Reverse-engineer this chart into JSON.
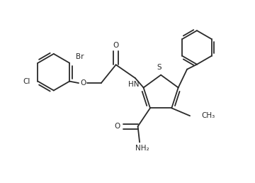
{
  "bg_color": "#ffffff",
  "line_color": "#2a2a2a",
  "line_width": 1.3,
  "figsize": [
    3.6,
    2.58
  ],
  "dpi": 100,
  "xlim": [
    0,
    7.2
  ],
  "ylim": [
    0,
    5.2
  ]
}
